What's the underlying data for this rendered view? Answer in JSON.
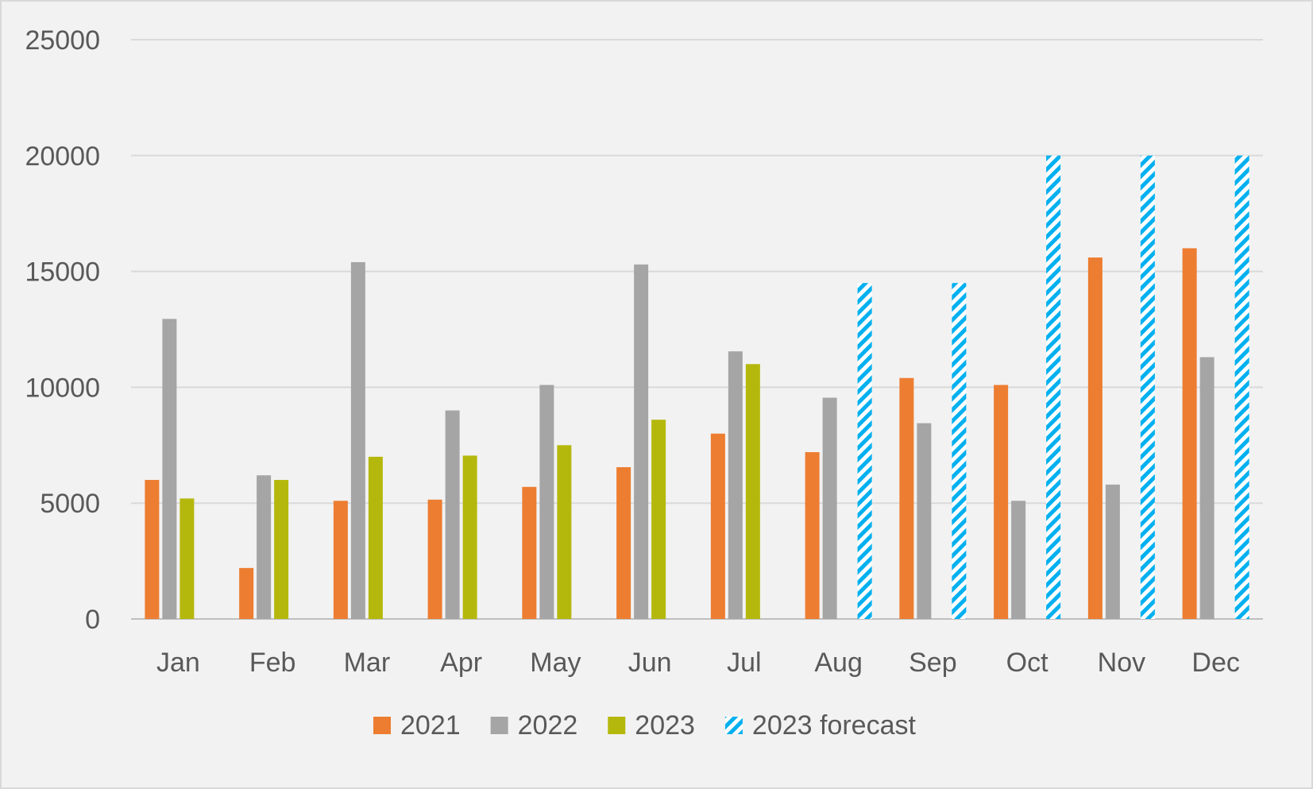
{
  "chart_data": {
    "type": "bar",
    "title": "",
    "xlabel": "",
    "ylabel": "",
    "ylim": [
      0,
      25000
    ],
    "y_ticks": [
      0,
      5000,
      10000,
      15000,
      20000,
      25000
    ],
    "grid": true,
    "legend_position": "bottom",
    "categories": [
      "Jan",
      "Feb",
      "Mar",
      "Apr",
      "May",
      "Jun",
      "Jul",
      "Aug",
      "Sep",
      "Oct",
      "Nov",
      "Dec"
    ],
    "series": [
      {
        "name": "2021",
        "color": "#ed7d31",
        "pattern": "solid",
        "values": [
          6000,
          2200,
          5100,
          5150,
          5700,
          6550,
          8000,
          7200,
          10400,
          10100,
          15600,
          16000
        ]
      },
      {
        "name": "2022",
        "color": "#a5a5a5",
        "pattern": "solid",
        "values": [
          12950,
          6200,
          15400,
          9000,
          10100,
          15300,
          11550,
          9550,
          8450,
          5100,
          5800,
          11300
        ]
      },
      {
        "name": "2023",
        "color": "#b5b80c",
        "pattern": "solid",
        "values": [
          5200,
          6000,
          7000,
          7050,
          7500,
          8600,
          11000,
          null,
          null,
          null,
          null,
          null
        ]
      },
      {
        "name": "2023 forecast",
        "color": "#00b0f0",
        "pattern": "hatched",
        "values": [
          null,
          null,
          null,
          null,
          null,
          null,
          null,
          14500,
          14500,
          20000,
          20000,
          20000
        ]
      }
    ]
  }
}
